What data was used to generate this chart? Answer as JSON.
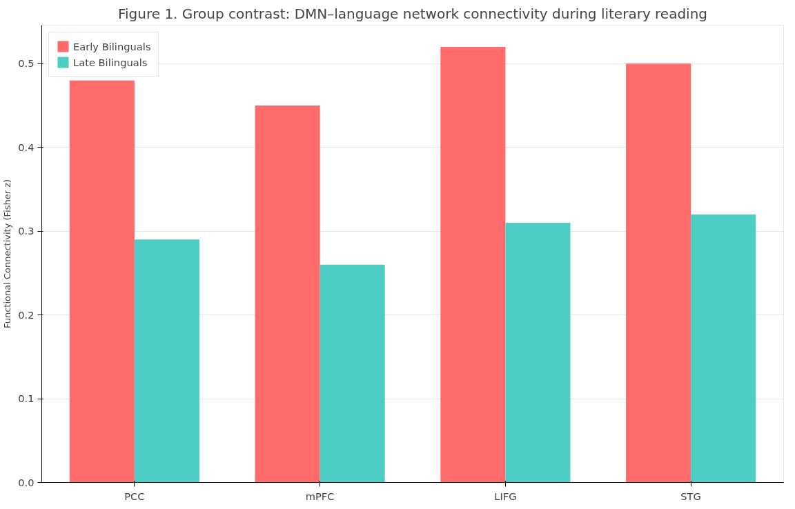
{
  "chart_data": {
    "type": "bar",
    "title": "Figure 1. Group contrast: DMN–language network connectivity during literary reading",
    "ylabel": "Functional Connectivity (Fisher z)",
    "categories": [
      "PCC",
      "mPFC",
      "LIFG",
      "STG"
    ],
    "series": [
      {
        "name": "Early Bilinguals",
        "color": "#ff6b6b",
        "values": [
          0.48,
          0.45,
          0.52,
          0.5
        ]
      },
      {
        "name": "Late Bilinguals",
        "color": "#4ecdc4",
        "values": [
          0.29,
          0.26,
          0.31,
          0.32
        ]
      }
    ],
    "ylim": [
      0,
      0.546
    ],
    "yticks": [
      {
        "value": 0,
        "label": "0.0"
      },
      0.1,
      0.2,
      0.3,
      0.4,
      0.5
    ],
    "grid": "y",
    "legend": "top left"
  }
}
